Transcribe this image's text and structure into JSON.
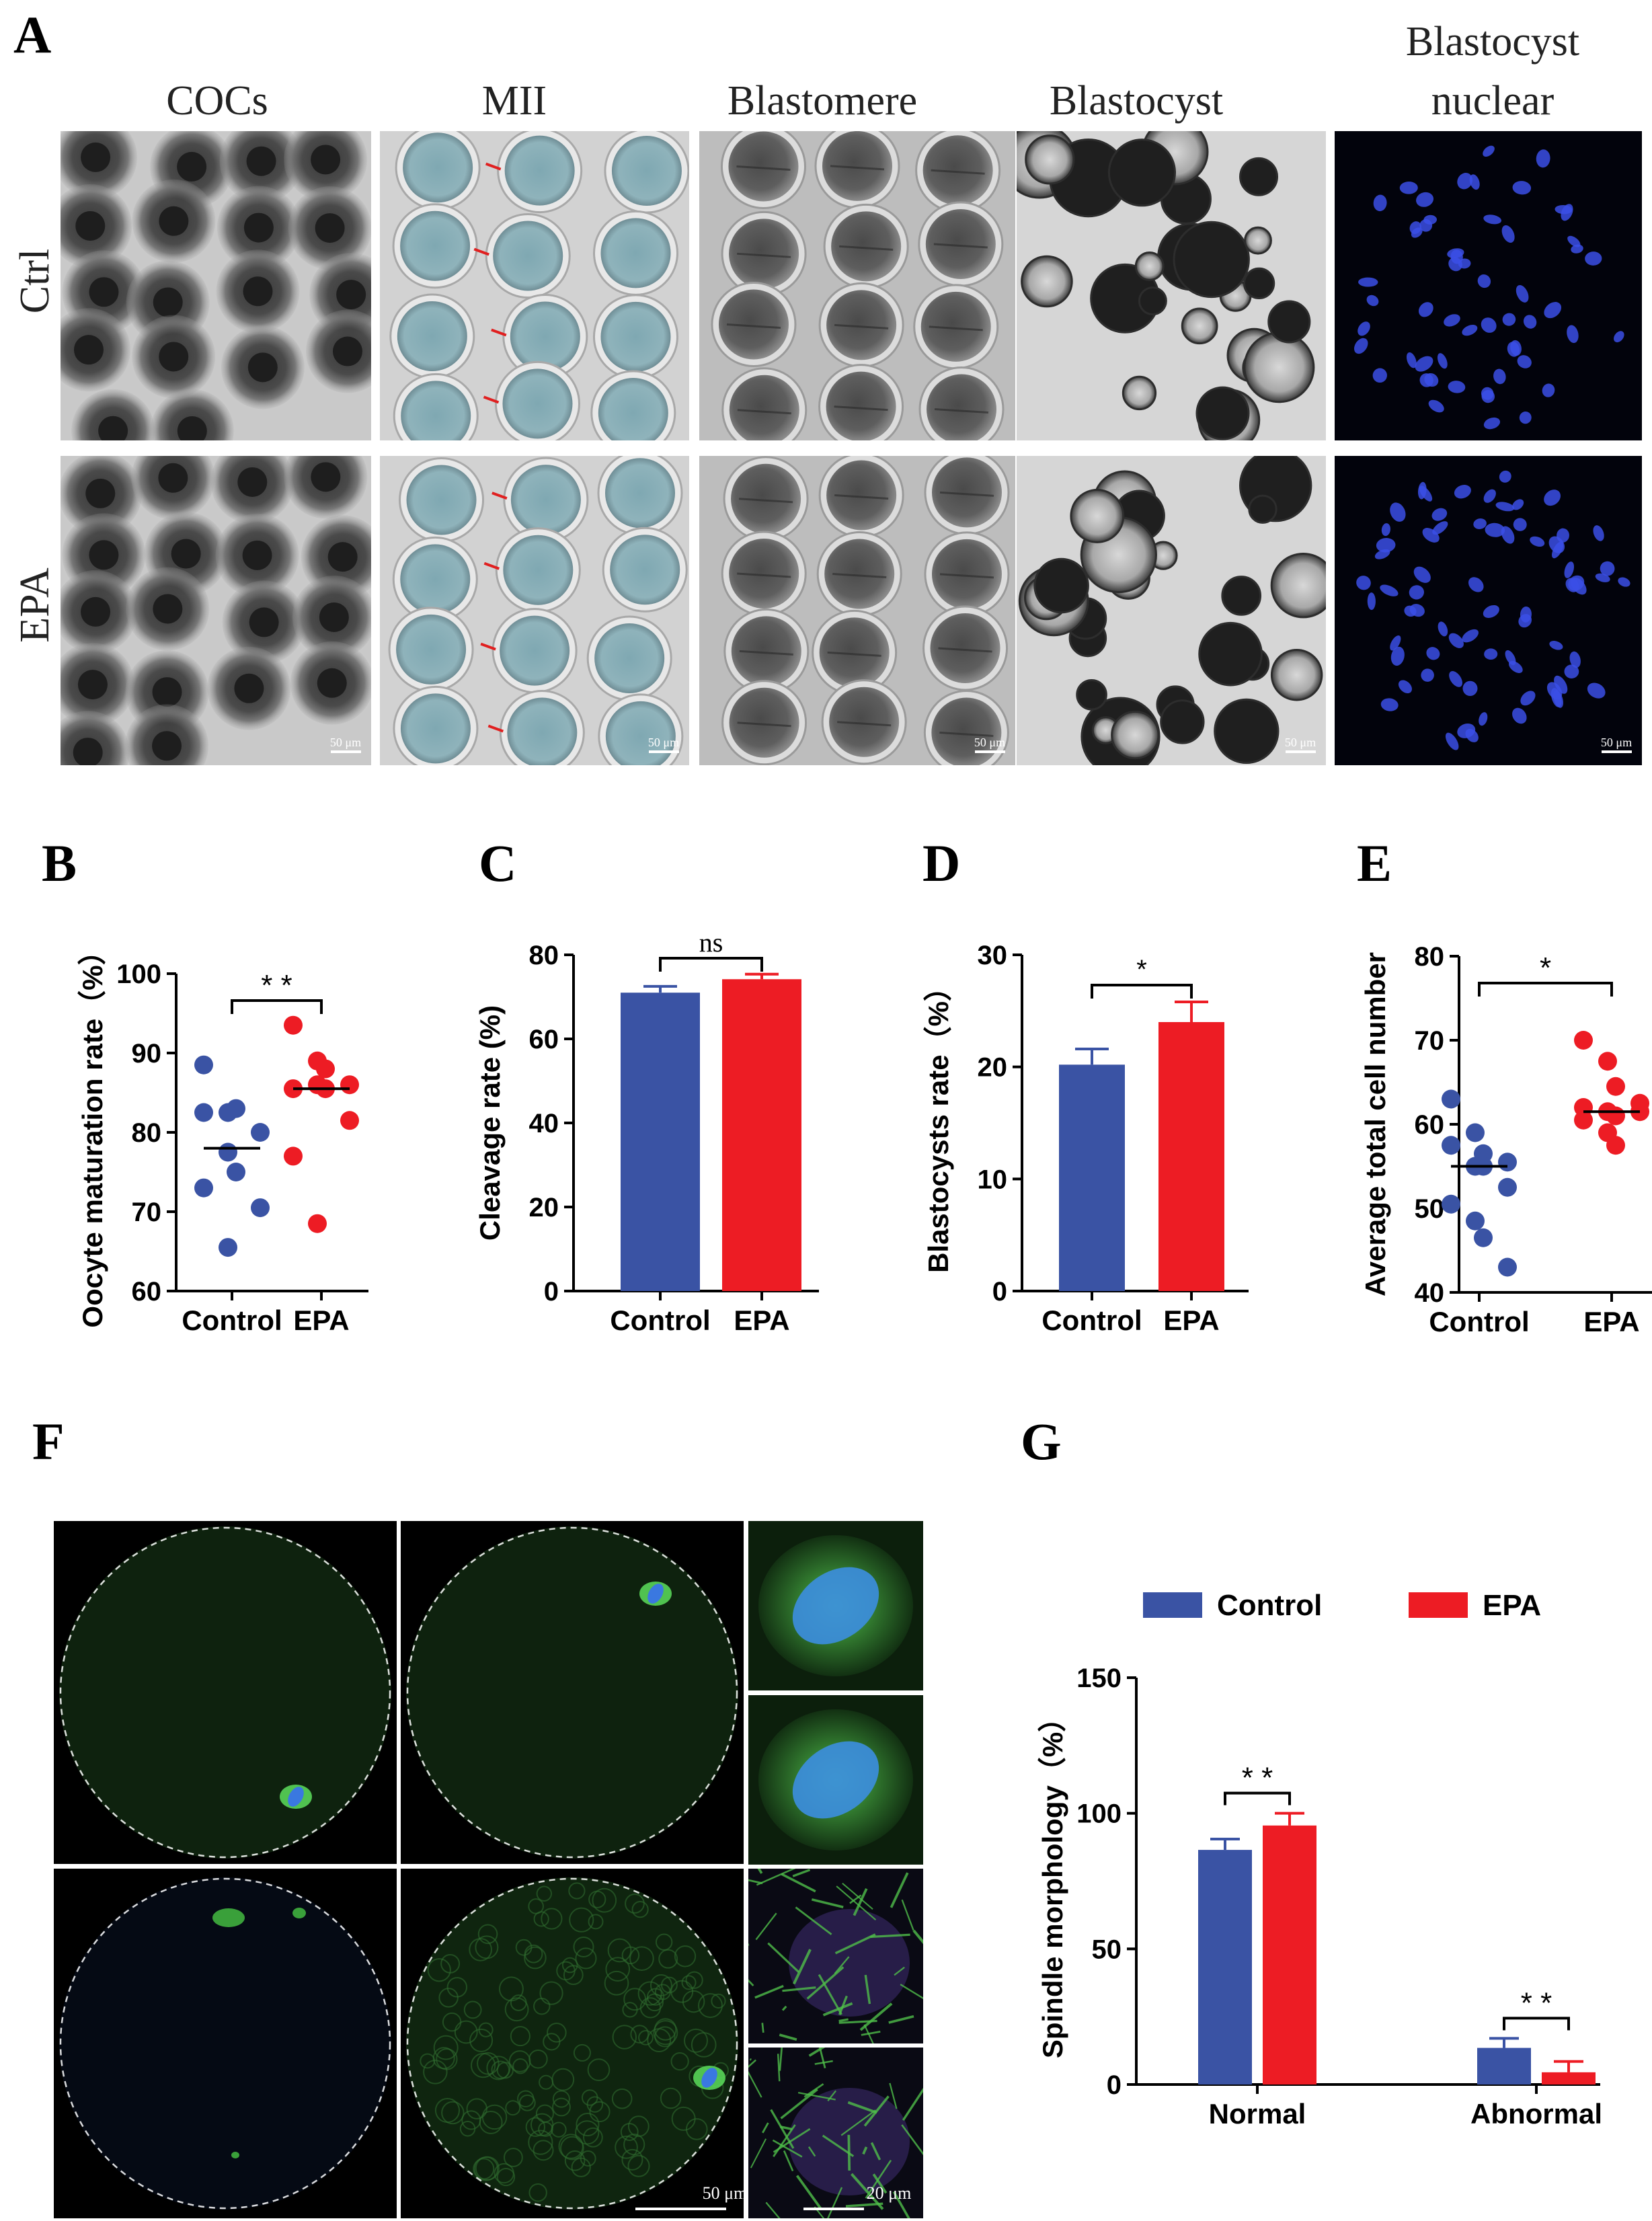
{
  "panel_letters": {
    "A": "A",
    "B": "B",
    "C": "C",
    "D": "D",
    "E": "E",
    "F": "F",
    "G": "G"
  },
  "panelA": {
    "columns": [
      "COCs",
      "MII",
      "Blastomere",
      "Blastocyst",
      "Blastocyst",
      "nuclear"
    ],
    "rows": [
      "Ctrl",
      "EPA"
    ],
    "scale_bar_label": "50 μm"
  },
  "panelF": {
    "scale_bar_large": "50 μm",
    "scale_bar_small": "20 μm"
  },
  "chart_data": [
    {
      "id": "B",
      "type": "scatter",
      "categories": [
        "Control",
        "EPA"
      ],
      "ylabel": "Oocyte maturation rate（%）",
      "ylim": [
        60,
        100
      ],
      "yticks": [
        60,
        70,
        80,
        90,
        100
      ],
      "significance": "* *",
      "colors": [
        "#3a53a4",
        "#ed1c24"
      ],
      "series": [
        {
          "values": [
            88.5,
            82.5,
            83,
            80,
            82.5,
            77.5,
            75,
            70.5,
            73,
            65.5
          ],
          "median": 78
        },
        {
          "values": [
            93.5,
            89,
            88,
            86,
            85.5,
            86,
            85.5,
            81.5,
            77,
            68.5
          ],
          "median": 85.5
        }
      ]
    },
    {
      "id": "C",
      "type": "bar",
      "categories": [
        "Control",
        "EPA"
      ],
      "ylabel": "Cleavage rate (%)",
      "ylim": [
        0,
        80
      ],
      "yticks": [
        0,
        20,
        40,
        60,
        80
      ],
      "significance": "ns",
      "colors": [
        "#3a53a4",
        "#ed1c24"
      ],
      "values": [
        71,
        74.2
      ],
      "errors": [
        1.5,
        1.2
      ]
    },
    {
      "id": "D",
      "type": "bar",
      "categories": [
        "Control",
        "EPA"
      ],
      "ylabel": "Blastocysts rate（%）",
      "ylim": [
        0,
        30
      ],
      "yticks": [
        0,
        10,
        20,
        30
      ],
      "significance": "*",
      "colors": [
        "#3a53a4",
        "#ed1c24"
      ],
      "values": [
        20.2,
        24
      ],
      "errors": [
        1.4,
        1.8
      ]
    },
    {
      "id": "E",
      "type": "scatter",
      "categories": [
        "Control",
        "EPA"
      ],
      "ylabel": "Average total cell number",
      "ylim": [
        40,
        80
      ],
      "yticks": [
        40,
        50,
        60,
        70,
        80
      ],
      "significance": "*",
      "colors": [
        "#3a53a4",
        "#ed1c24"
      ],
      "series": [
        {
          "values": [
            63,
            59,
            56.5,
            55.5,
            57.5,
            55,
            55,
            52.5,
            50.5,
            48.5,
            46.5,
            43
          ],
          "median": 55
        },
        {
          "values": [
            70,
            67.5,
            64.5,
            62.5,
            62,
            61.5,
            61,
            61.5,
            60.5,
            59,
            57.5
          ],
          "median": 61.5
        }
      ]
    },
    {
      "id": "G",
      "type": "bar",
      "categories": [
        "Normal",
        "Abnormal"
      ],
      "ylabel": "Spindle morphology（%）",
      "ylim": [
        0,
        150
      ],
      "yticks": [
        0,
        50,
        100,
        150
      ],
      "legend": [
        "Control",
        "EPA"
      ],
      "legend_position": "top",
      "significance": [
        "* *",
        "* *"
      ],
      "colors": [
        "#3a53a4",
        "#ed1c24"
      ],
      "series": [
        {
          "name": "Control",
          "values": [
            86.5,
            13.5
          ],
          "errors": [
            4,
            3.5
          ]
        },
        {
          "name": "EPA",
          "values": [
            95.5,
            4.5
          ],
          "errors": [
            4.5,
            4
          ]
        }
      ]
    }
  ]
}
